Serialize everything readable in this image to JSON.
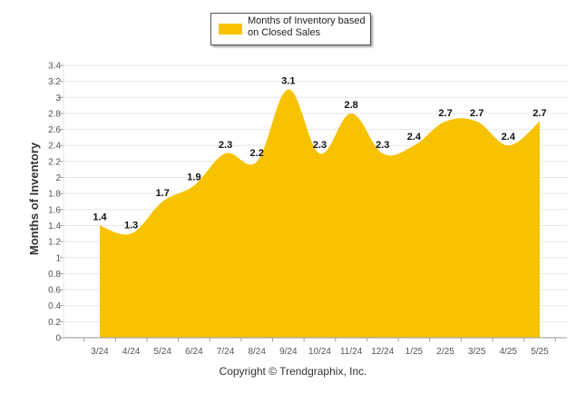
{
  "chart_data": {
    "type": "area",
    "categories": [
      "3/24",
      "4/24",
      "5/24",
      "6/24",
      "7/24",
      "8/24",
      "9/24",
      "10/24",
      "11/24",
      "12/24",
      "1/25",
      "2/25",
      "3/25",
      "4/25",
      "5/25"
    ],
    "series": [
      {
        "name": "Months of Inventory based on Closed Sales",
        "values": [
          1.4,
          1.3,
          1.7,
          1.9,
          2.3,
          2.2,
          3.1,
          2.3,
          2.8,
          2.3,
          2.4,
          2.7,
          2.7,
          2.4,
          2.7
        ]
      }
    ],
    "data_labels": [
      "1.4",
      "1.3",
      "1.7",
      "1.9",
      "2.3",
      "2.2",
      "3.1",
      "2.3",
      "2.8",
      "2.3",
      "2.4",
      "2.7",
      "2.7",
      "2.4",
      "2.7"
    ],
    "ylabel": "Months of Inventory",
    "xlabel": "",
    "ylim": [
      0,
      3.4
    ],
    "yticks": [
      "0",
      "0.2",
      "0.4",
      "0.6",
      "0.8",
      "1",
      "1.2",
      "1.4",
      "1.6",
      "1.8",
      "2",
      "2.2",
      "2.4",
      "2.6",
      "2.8",
      "3",
      "3.2",
      "3.4"
    ],
    "grid": true,
    "legend_position": "top-center",
    "colors": {
      "series": "#f7c300",
      "grid": "#e6e6e6",
      "axis": "#9a9a9a"
    }
  },
  "legend": {
    "label": "Months of Inventory based on Closed Sales"
  },
  "credit": "Copyright © Trendgraphix, Inc."
}
